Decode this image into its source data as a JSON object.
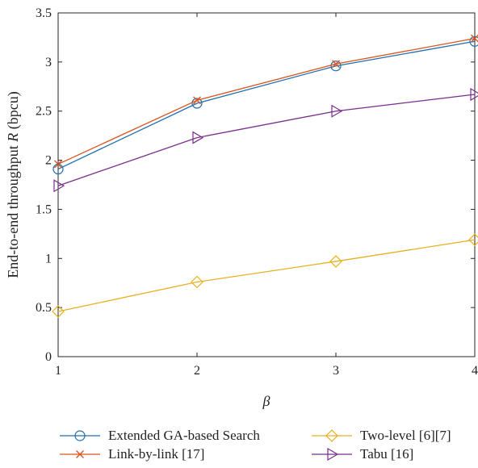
{
  "chart_data": {
    "type": "line",
    "x": [
      1,
      2,
      3,
      4
    ],
    "xlim": [
      1,
      4
    ],
    "ylim": [
      0,
      3.5
    ],
    "xticks": [
      "1",
      "2",
      "3",
      "4"
    ],
    "yticks": [
      "0",
      "0.5",
      "1",
      "1.5",
      "2",
      "2.5",
      "3",
      "3.5"
    ],
    "ytick_values": [
      0,
      0.5,
      1,
      1.5,
      2,
      2.5,
      3,
      3.5
    ],
    "xlabel": "β",
    "ylabel_prefix": "End-to-end throughput ",
    "ylabel_var": "R",
    "ylabel_suffix": " (bpcu)",
    "grid": false,
    "legend_position": "bottom",
    "series": [
      {
        "name": "Extended GA-based Search",
        "values": [
          1.91,
          2.58,
          2.96,
          3.21
        ],
        "color": "#1f6fb0",
        "marker": "circle"
      },
      {
        "name": "Link-by-link [17]",
        "values": [
          1.96,
          2.61,
          2.98,
          3.24
        ],
        "color": "#d9541e",
        "marker": "cross"
      },
      {
        "name": "Two-level [6][7]",
        "values": [
          0.46,
          0.76,
          0.97,
          1.19
        ],
        "color": "#e8b020",
        "marker": "diamond"
      },
      {
        "name": "Tabu [16]",
        "values": [
          1.74,
          2.23,
          2.5,
          2.67
        ],
        "color": "#7b2d8e",
        "marker": "triangle-right"
      }
    ]
  }
}
